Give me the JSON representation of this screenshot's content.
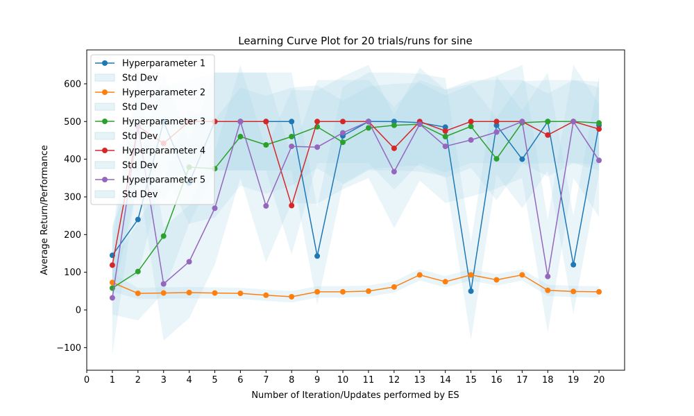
{
  "chart_data": {
    "type": "line",
    "title": "Learning Curve Plot for 20 trials/runs for sine",
    "xlabel": "Number of Iteration/Updates performed by ES",
    "ylabel": "Average Return/Performance",
    "xlim": [
      0,
      21
    ],
    "ylim": [
      -160,
      690
    ],
    "xticks": [
      0,
      1,
      2,
      3,
      4,
      5,
      6,
      7,
      8,
      9,
      10,
      11,
      12,
      13,
      14,
      15,
      16,
      17,
      18,
      19,
      20
    ],
    "yticks": [
      -100,
      0,
      100,
      200,
      300,
      400,
      500,
      600
    ],
    "grid": false,
    "legend_position": "upper-left",
    "std_label": "Std Dev",
    "band_color": "#add8e6",
    "x": [
      1,
      2,
      3,
      4,
      5,
      6,
      7,
      8,
      9,
      10,
      11,
      12,
      13,
      14,
      15,
      16,
      17,
      18,
      19,
      20
    ],
    "series": [
      {
        "name": "Hyperparameter 1",
        "color": "#1f77b4",
        "values": [
          145,
          240,
          500,
          337,
          500,
          500,
          500,
          500,
          143,
          462,
          500,
          500,
          497,
          485,
          50,
          490,
          400,
          500,
          120,
          490
        ],
        "std": [
          80,
          150,
          130,
          110,
          130,
          130,
          130,
          130,
          130,
          130,
          130,
          130,
          130,
          130,
          130,
          130,
          130,
          130,
          130,
          130
        ]
      },
      {
        "name": "Hyperparameter 2",
        "color": "#ff7f0e",
        "values": [
          73,
          44,
          45,
          46,
          45,
          44,
          39,
          35,
          48,
          48,
          50,
          61,
          93,
          75,
          93,
          80,
          93,
          52,
          49,
          48
        ],
        "std": [
          25,
          15,
          15,
          15,
          15,
          15,
          15,
          15,
          15,
          15,
          15,
          15,
          15,
          15,
          15,
          15,
          15,
          15,
          15,
          15
        ]
      },
      {
        "name": "Hyperparameter 3",
        "color": "#2ca02c",
        "values": [
          58,
          102,
          196,
          379,
          375,
          460,
          438,
          460,
          486,
          445,
          483,
          490,
          493,
          460,
          487,
          401,
          497,
          500,
          500,
          496
        ],
        "std": [
          70,
          130,
          150,
          150,
          130,
          130,
          130,
          130,
          110,
          110,
          110,
          110,
          110,
          110,
          110,
          110,
          110,
          110,
          110,
          110
        ]
      },
      {
        "name": "Hyperparameter 4",
        "color": "#d62728",
        "values": [
          119,
          487,
          442,
          500,
          500,
          500,
          500,
          277,
          500,
          500,
          500,
          429,
          500,
          475,
          500,
          500,
          500,
          464,
          500,
          480
        ],
        "std": [
          90,
          150,
          150,
          110,
          130,
          130,
          130,
          130,
          110,
          110,
          110,
          110,
          110,
          110,
          110,
          110,
          110,
          110,
          110,
          110
        ]
      },
      {
        "name": "Hyperparameter 5",
        "color": "#9467bd",
        "values": [
          32,
          487,
          69,
          128,
          270,
          500,
          276,
          434,
          432,
          470,
          500,
          367,
          493,
          434,
          451,
          472,
          500,
          89,
          500,
          397
        ],
        "std": [
          150,
          130,
          150,
          150,
          150,
          150,
          150,
          150,
          150,
          150,
          150,
          150,
          150,
          150,
          150,
          150,
          150,
          150,
          150,
          150
        ]
      }
    ]
  }
}
